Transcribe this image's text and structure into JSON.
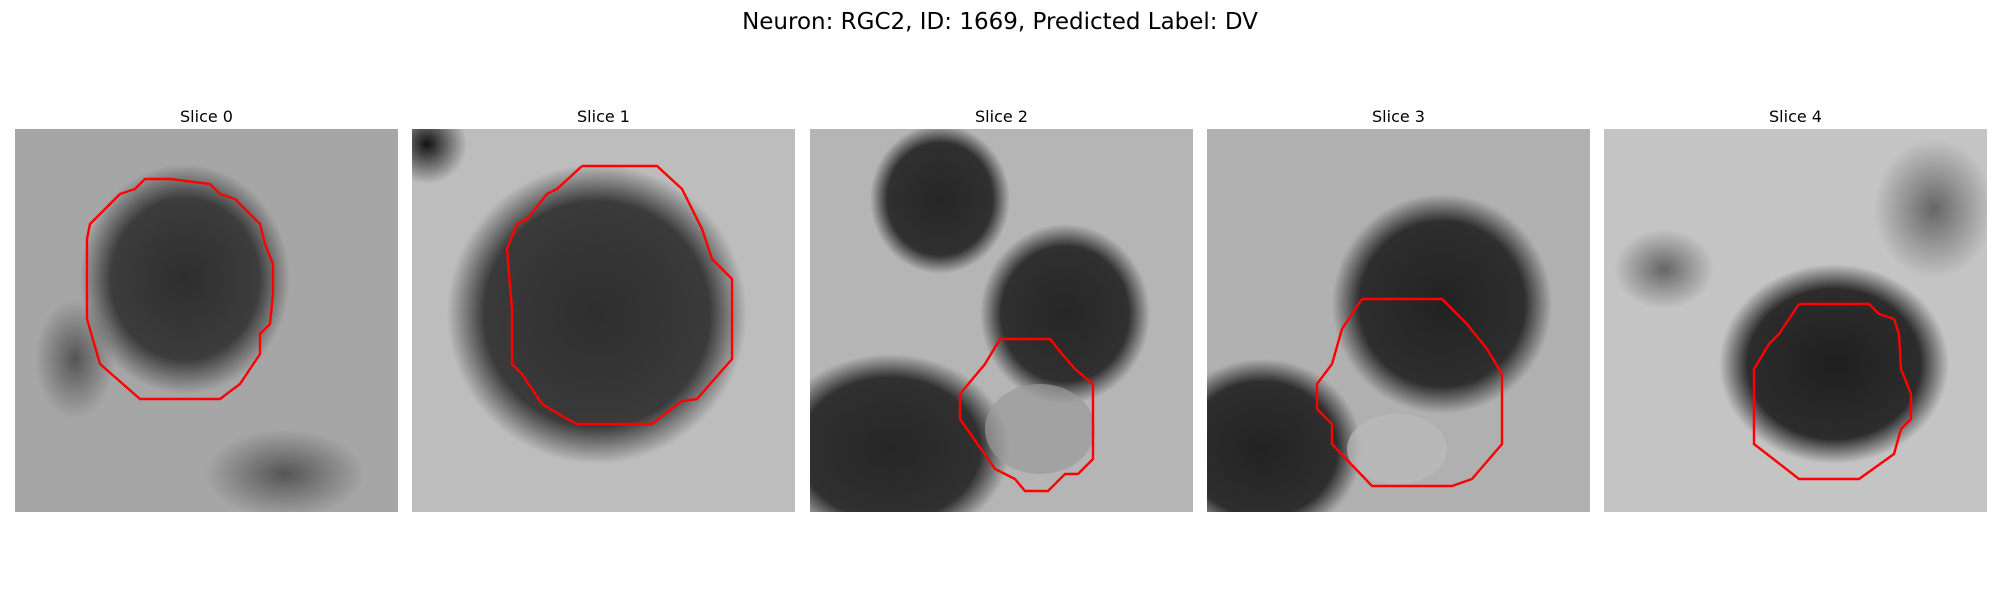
{
  "figure": {
    "title": "Neuron: RGC2, ID: 1669, Predicted Label: DV",
    "contour_color": "#ff0000",
    "colormap": "gray",
    "panels": [
      {
        "label": "Slice 0"
      },
      {
        "label": "Slice 1"
      },
      {
        "label": "Slice 2"
      },
      {
        "label": "Slice 3"
      },
      {
        "label": "Slice 4"
      }
    ]
  }
}
